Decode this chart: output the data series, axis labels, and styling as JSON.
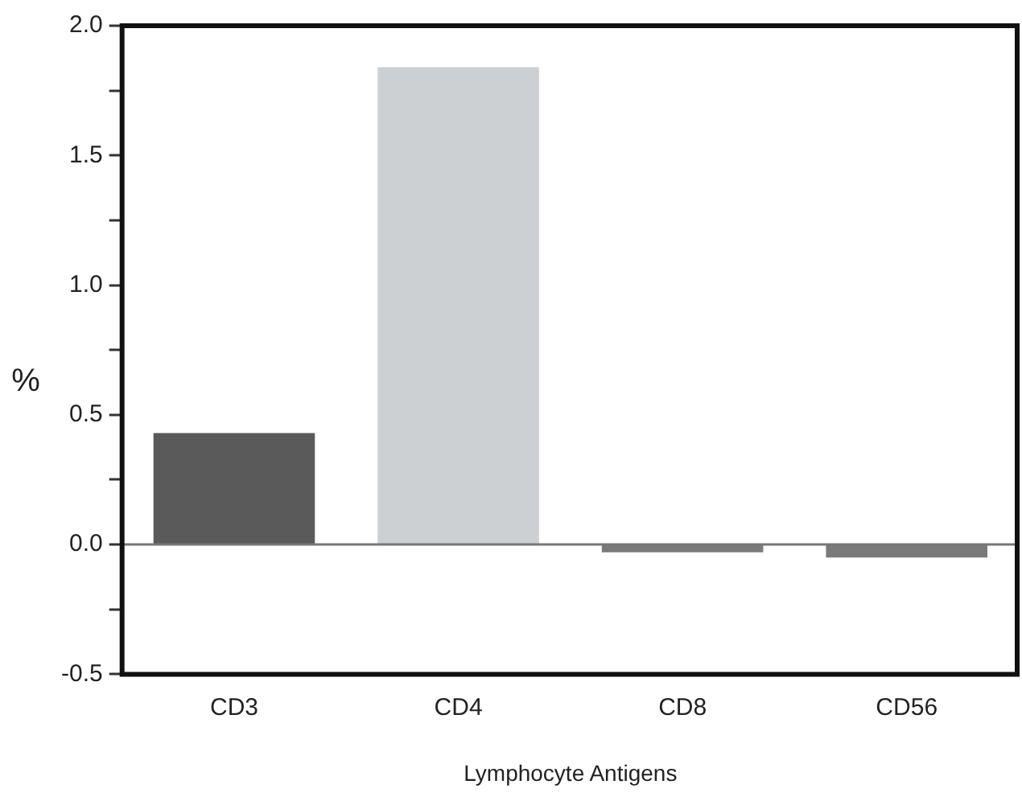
{
  "chart_data": {
    "type": "bar",
    "xlabel": "Lymphocyte Antigens",
    "ylabel": "%",
    "categories": [
      "CD3",
      "CD4",
      "CD8",
      "CD56"
    ],
    "values": [
      0.43,
      1.84,
      -0.03,
      -0.05
    ],
    "colors": [
      "#5a5a5a",
      "#cdd0d3",
      "#7a7a7a",
      "#7a7a7a"
    ],
    "ylim": [
      -0.5,
      2.0
    ],
    "yticks": [
      {
        "value": -0.5,
        "label": "-0.5"
      },
      {
        "value": -0.25,
        "label": null
      },
      {
        "value": 0,
        "label": "0.0"
      },
      {
        "value": 0.25,
        "label": null
      },
      {
        "value": 0.5,
        "label": "0.5"
      },
      {
        "value": 0.75,
        "label": null
      },
      {
        "value": 1,
        "label": "1.0"
      },
      {
        "value": 1.25,
        "label": null
      },
      {
        "value": 1.5,
        "label": "1.5"
      },
      {
        "value": 1.75,
        "label": null
      },
      {
        "value": 2,
        "label": "2.0"
      }
    ],
    "ref_lines": [
      {
        "axis": "y",
        "value": 0,
        "color": "#777777"
      }
    ],
    "grid": false,
    "legend": false
  }
}
